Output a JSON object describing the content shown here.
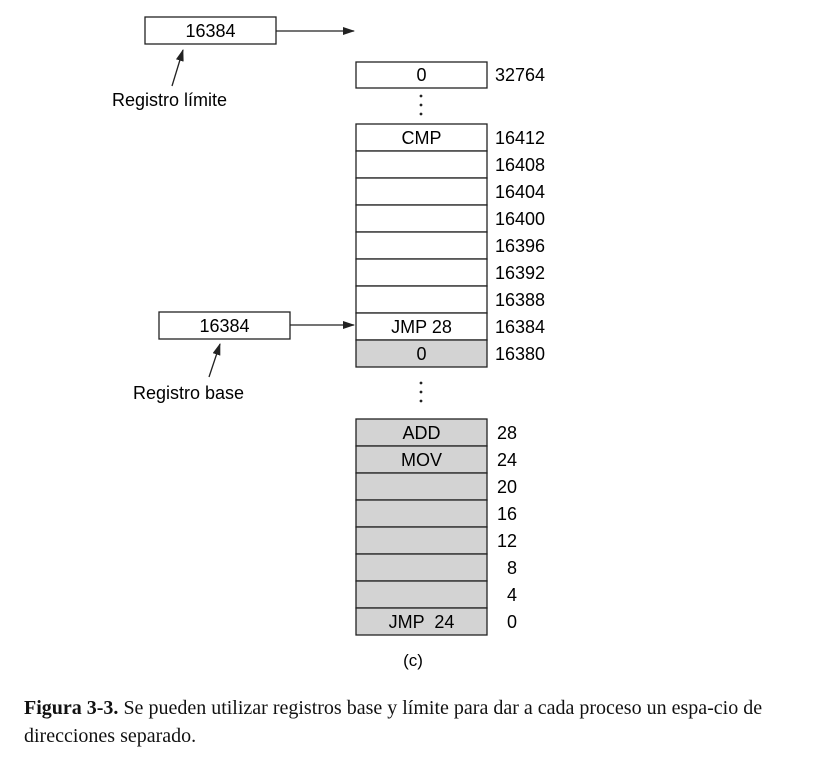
{
  "colors": {
    "shaded": "#d3d3d3",
    "stroke": "#222222",
    "white": "#ffffff"
  },
  "limit_register": {
    "value": "16384",
    "label": "Registro límite"
  },
  "base_register": {
    "value": "16384",
    "label": "Registro base"
  },
  "upper_memory": {
    "top_cell": {
      "content": "0",
      "address": "32764"
    },
    "block": [
      {
        "content": "CMP",
        "address": "16412",
        "shaded": false
      },
      {
        "content": "",
        "address": "16408",
        "shaded": false
      },
      {
        "content": "",
        "address": "16404",
        "shaded": false
      },
      {
        "content": "",
        "address": "16400",
        "shaded": false
      },
      {
        "content": "",
        "address": "16396",
        "shaded": false
      },
      {
        "content": "",
        "address": "16392",
        "shaded": false
      },
      {
        "content": "",
        "address": "16388",
        "shaded": false
      },
      {
        "content": "JMP 28",
        "address": "16384",
        "shaded": false
      },
      {
        "content": "0",
        "address": "16380",
        "shaded": true
      }
    ]
  },
  "lower_memory": [
    {
      "content": "ADD",
      "address": "28"
    },
    {
      "content": "MOV",
      "address": "24"
    },
    {
      "content": "",
      "address": "20"
    },
    {
      "content": "",
      "address": "16"
    },
    {
      "content": "",
      "address": "12"
    },
    {
      "content": "",
      "address": "8"
    },
    {
      "content": "",
      "address": "4"
    },
    {
      "content": "JMP  24",
      "address": "0"
    }
  ],
  "panel_label": "(c)",
  "caption": {
    "label": "Figura 3-3.",
    "text": "Se pueden utilizar registros base y límite para dar a cada proceso un espa-cio de direcciones separado."
  }
}
